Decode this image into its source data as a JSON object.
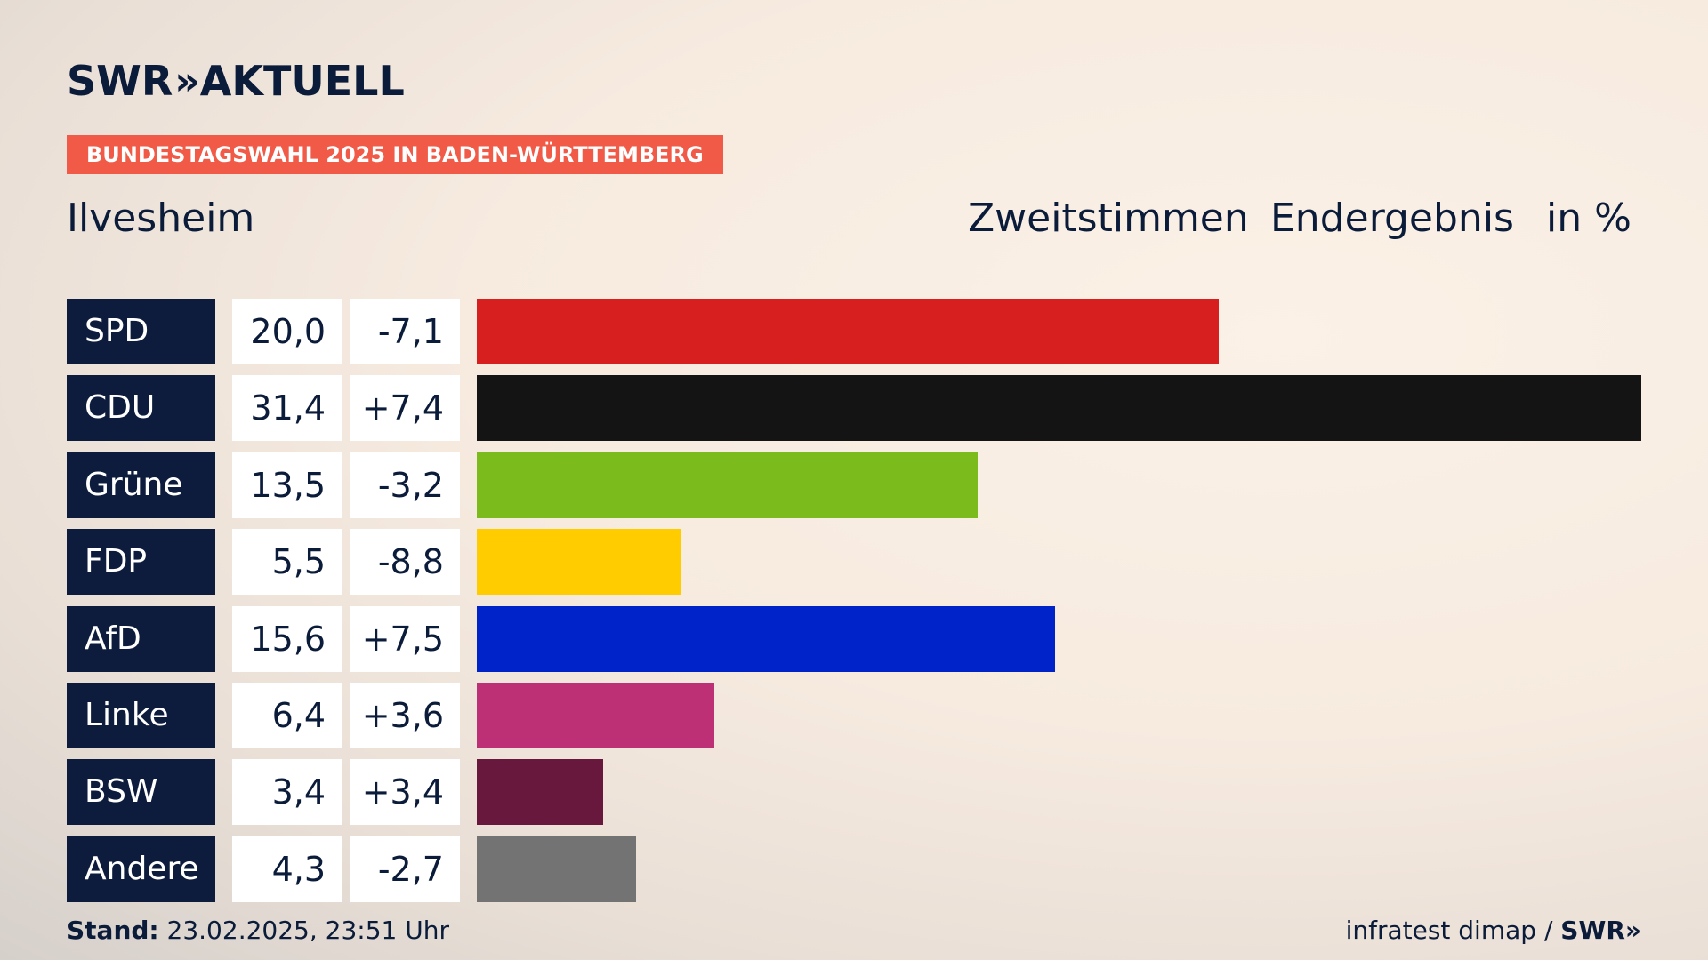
{
  "brand": {
    "name": "SWR",
    "chevrons": "»",
    "product": "AKTUELL"
  },
  "banner": "BUNDESTAGSWAHL 2025 IN BADEN-WÜRTTEMBERG",
  "region": "Ilvesheim",
  "header": {
    "vote_type": "Zweitstimmen",
    "status": "Endergebnis",
    "unit": "in %"
  },
  "chart_data": {
    "type": "bar",
    "orientation": "horizontal",
    "categories": [
      "SPD",
      "CDU",
      "Grüne",
      "FDP",
      "AfD",
      "Linke",
      "BSW",
      "Andere"
    ],
    "values": [
      20.0,
      31.4,
      13.5,
      5.5,
      15.6,
      6.4,
      3.4,
      4.3
    ],
    "value_labels": [
      "20,0",
      "31,4",
      "13,5",
      "5,5",
      "15,6",
      "6,4",
      "3,4",
      "4,3"
    ],
    "diff_labels": [
      "-7,1",
      "+7,4",
      "-3,2",
      "-8,8",
      "+7,5",
      "+3,6",
      "+3,4",
      "-2,7"
    ],
    "colors": [
      "#d81f20",
      "#141414",
      "#7cbb1c",
      "#ffcc00",
      "#0022c9",
      "#bd3075",
      "#68183d",
      "#737373"
    ],
    "xlim": [
      0,
      31.4
    ]
  },
  "footer": {
    "stand_label": "Stand:",
    "stand_value": "23.02.2025, 23:51 Uhr",
    "source": "infratest dimap /",
    "source_brand": "SWR»"
  }
}
